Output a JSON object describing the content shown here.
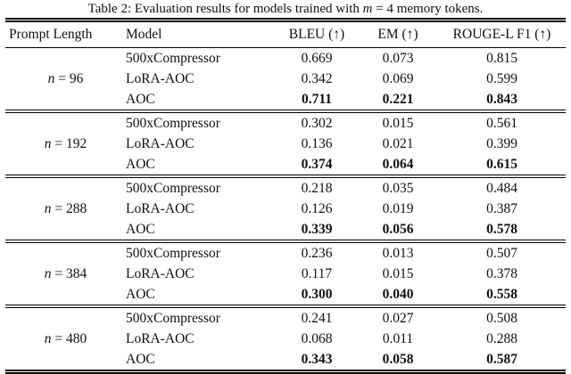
{
  "caption": {
    "prefix": "Table 2: Evaluation results for models trained with ",
    "var": "m",
    "rest": " = 4 memory tokens."
  },
  "columns": {
    "prompt_length": "Prompt Length",
    "model": "Model",
    "bleu": "BLEU (↑)",
    "em": "EM (↑)",
    "rouge": "ROUGE-L F1 (↑)"
  },
  "groups": [
    {
      "label_var": "n",
      "label_rest": " = 96",
      "rows": [
        {
          "model": "500xCompressor",
          "bleu": "0.669",
          "em": "0.073",
          "rouge": "0.815"
        },
        {
          "model": "LoRA-AOC",
          "bleu": "0.342",
          "em": "0.069",
          "rouge": "0.599"
        },
        {
          "model": "AOC",
          "bleu": "0.711",
          "em": "0.221",
          "rouge": "0.843"
        }
      ]
    },
    {
      "label_var": "n",
      "label_rest": " = 192",
      "rows": [
        {
          "model": "500xCompressor",
          "bleu": "0.302",
          "em": "0.015",
          "rouge": "0.561"
        },
        {
          "model": "LoRA-AOC",
          "bleu": "0.136",
          "em": "0.021",
          "rouge": "0.399"
        },
        {
          "model": "AOC",
          "bleu": "0.374",
          "em": "0.064",
          "rouge": "0.615"
        }
      ]
    },
    {
      "label_var": "n",
      "label_rest": " = 288",
      "rows": [
        {
          "model": "500xCompressor",
          "bleu": "0.218",
          "em": "0.035",
          "rouge": "0.484"
        },
        {
          "model": "LoRA-AOC",
          "bleu": "0.126",
          "em": "0.019",
          "rouge": "0.387"
        },
        {
          "model": "AOC",
          "bleu": "0.339",
          "em": "0.056",
          "rouge": "0.578"
        }
      ]
    },
    {
      "label_var": "n",
      "label_rest": " = 384",
      "rows": [
        {
          "model": "500xCompressor",
          "bleu": "0.236",
          "em": "0.013",
          "rouge": "0.507"
        },
        {
          "model": "LoRA-AOC",
          "bleu": "0.117",
          "em": "0.015",
          "rouge": "0.378"
        },
        {
          "model": "AOC",
          "bleu": "0.300",
          "em": "0.040",
          "rouge": "0.558"
        }
      ]
    },
    {
      "label_var": "n",
      "label_rest": " = 480",
      "rows": [
        {
          "model": "500xCompressor",
          "bleu": "0.241",
          "em": "0.027",
          "rouge": "0.508"
        },
        {
          "model": "LoRA-AOC",
          "bleu": "0.068",
          "em": "0.011",
          "rouge": "0.288"
        },
        {
          "model": "AOC",
          "bleu": "0.343",
          "em": "0.058",
          "rouge": "0.587"
        }
      ]
    }
  ]
}
